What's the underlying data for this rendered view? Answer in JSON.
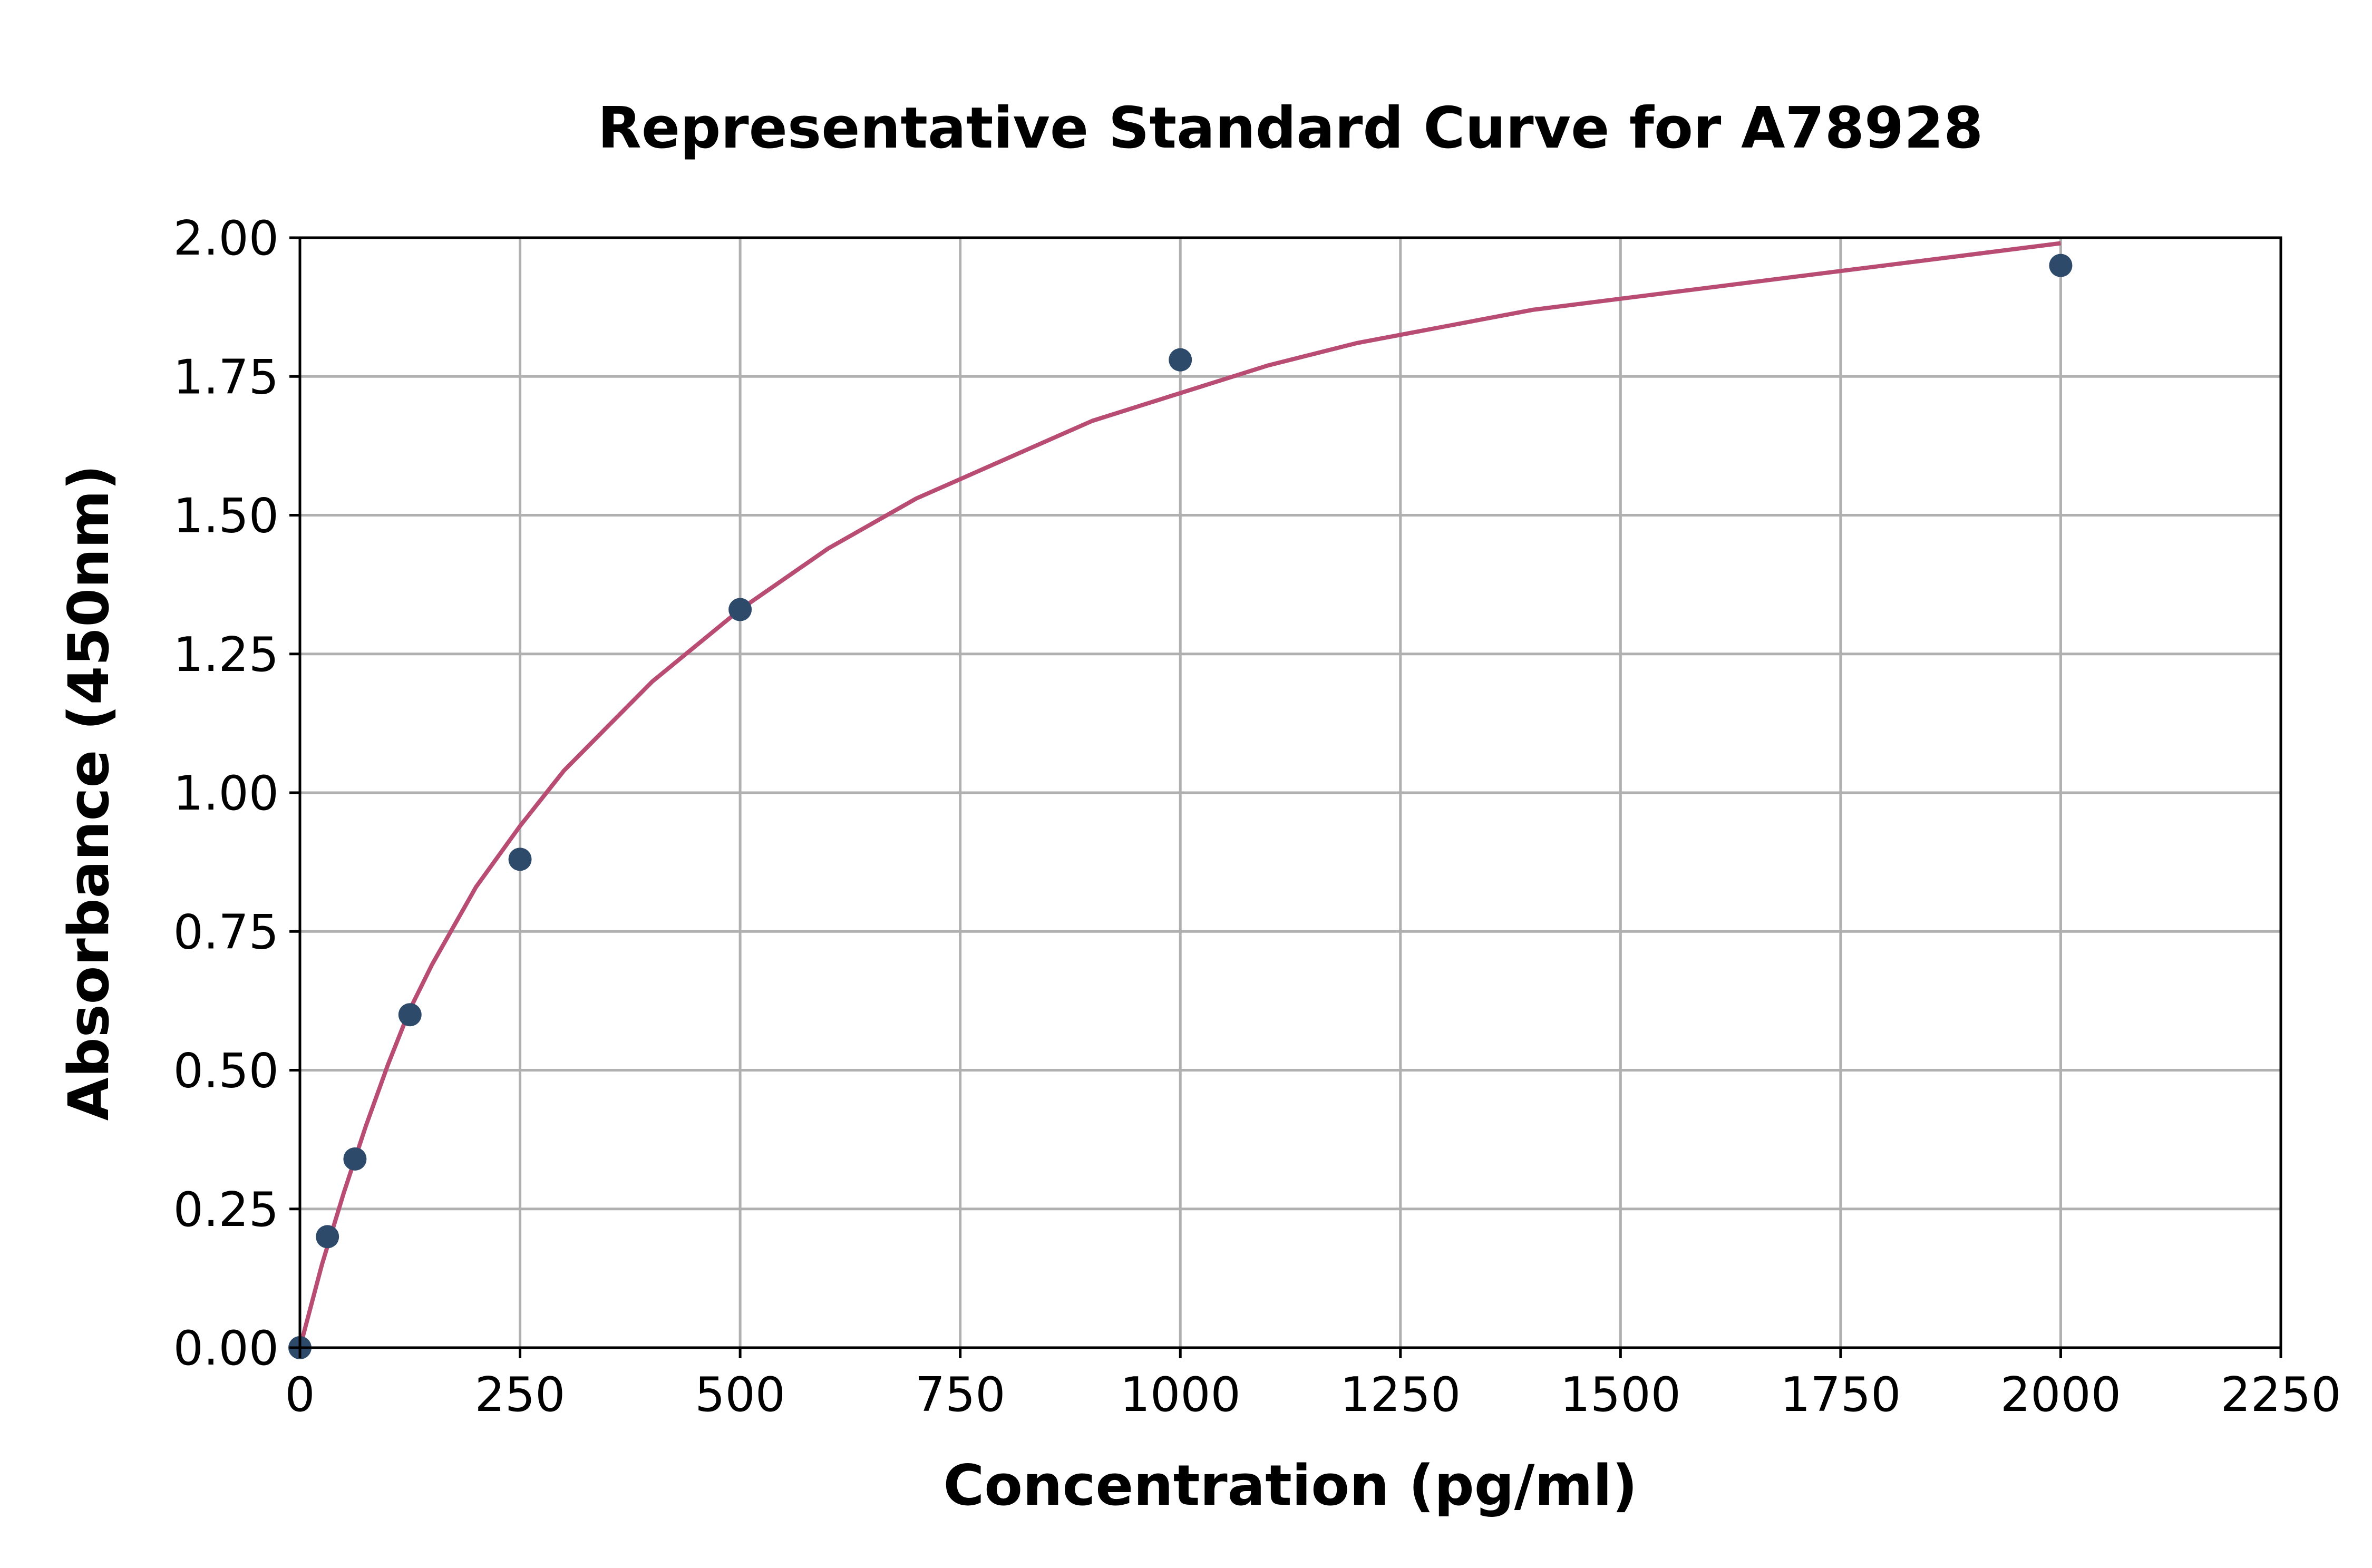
{
  "chart_data": {
    "type": "scatter",
    "title": "Representative Standard Curve for A78928",
    "xlabel": "Concentration (pg/ml)",
    "ylabel": "Absorbance (450nm)",
    "xlim": [
      0,
      2250
    ],
    "ylim": [
      0,
      2.0
    ],
    "grid": true,
    "legend": "none",
    "x_ticks": [
      0,
      250,
      500,
      750,
      1000,
      1250,
      1500,
      1750,
      2000,
      2250
    ],
    "x_tick_labels": [
      "0",
      "250",
      "500",
      "750",
      "1000",
      "1250",
      "1500",
      "1750",
      "2000",
      "2250"
    ],
    "y_ticks": [
      0,
      0.25,
      0.5,
      0.75,
      1.0,
      1.25,
      1.5,
      1.75,
      2.0
    ],
    "y_tick_labels": [
      "0.00",
      "0.25",
      "0.50",
      "0.75",
      "1.00",
      "1.25",
      "1.50",
      "1.75",
      "2.00"
    ],
    "series": [
      {
        "type": "scatter",
        "color": "#2e4a6b",
        "x": [
          0,
          31.25,
          62.5,
          125,
          250,
          500,
          1000,
          2000
        ],
        "y": [
          0.0,
          0.2,
          0.34,
          0.6,
          0.88,
          1.33,
          1.78,
          1.95
        ]
      },
      {
        "type": "line",
        "color": "#b84c72",
        "x": [
          0,
          25,
          50,
          75,
          100,
          125,
          150,
          200,
          250,
          300,
          400,
          500,
          600,
          700,
          800,
          900,
          1000,
          1100,
          1200,
          1300,
          1400,
          1500,
          1600,
          1700,
          1800,
          1900,
          2000
        ],
        "y": [
          0.0,
          0.15,
          0.28,
          0.4,
          0.51,
          0.61,
          0.69,
          0.83,
          0.94,
          1.04,
          1.2,
          1.33,
          1.44,
          1.53,
          1.6,
          1.67,
          1.72,
          1.77,
          1.81,
          1.84,
          1.87,
          1.89,
          1.91,
          1.93,
          1.95,
          1.97,
          1.99
        ]
      }
    ]
  }
}
